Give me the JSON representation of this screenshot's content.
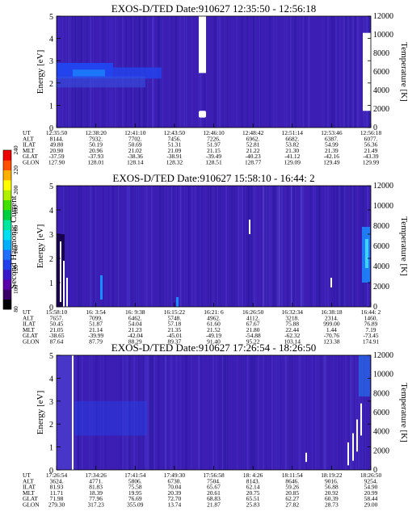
{
  "chart_data": [
    {
      "type": "heatmap",
      "title": "EXOS-D/TED   Date:910627  12:35:50 - 12:56:18",
      "ylabel": "Energy [eV]",
      "y2label": "Temperature [K]",
      "ylim": [
        0,
        5
      ],
      "y2lim": [
        0,
        12000
      ],
      "y_ticks": [
        "0",
        "1",
        "2",
        "3",
        "4",
        "5"
      ],
      "y2_ticks": [
        "0",
        "2000",
        "4000",
        "6000",
        "8000",
        "10000",
        "12000"
      ],
      "orbit_labels": [
        "UT",
        "ALT",
        "ILAT",
        "MLT",
        "GLAT",
        "GLON"
      ],
      "orbit_columns": [
        [
          "12:35:50",
          "8144.",
          "49.80",
          "20.90",
          "-37.59",
          "127.90"
        ],
        [
          "12:38:20",
          "7932.",
          "50.19",
          "20.96",
          "-37.93",
          "128.01"
        ],
        [
          "12:41:10",
          "7702.",
          "50.69",
          "21.02",
          "-38.36",
          "128.14"
        ],
        [
          "12:43:50",
          "7456.",
          "51.31",
          "21.09",
          "-38.91",
          "128.32"
        ],
        [
          "12:46:10",
          "7226.",
          "51.97",
          "21.15",
          "-39.49",
          "128.51"
        ],
        [
          "12:48:42",
          "6962.",
          "52.81",
          "21.22",
          "-40.23",
          "128.77"
        ],
        [
          "12:51:14",
          "6682.",
          "53.82",
          "21.30",
          "-41.12",
          "129.09"
        ],
        [
          "12:53:46",
          "6387.",
          "54.99",
          "21.39",
          "-42.16",
          "129.49"
        ],
        [
          "12:56:18",
          "6077.",
          "56.36",
          "21.49",
          "-43.39",
          "129.99"
        ]
      ]
    },
    {
      "type": "heatmap",
      "title": "EXOS-D/TED   Date:910627  15:58:10 - 16:44: 2",
      "ylabel": "Energy [eV]",
      "y2label": "Temperature [K]",
      "ylim": [
        0,
        5
      ],
      "y2lim": [
        0,
        12000
      ],
      "y_ticks": [
        "0",
        "1",
        "2",
        "3",
        "4",
        "5"
      ],
      "y2_ticks": [
        "0",
        "2000",
        "4000",
        "6000",
        "8000",
        "10000",
        "12000"
      ],
      "orbit_labels": [
        "UT",
        "ALT",
        "ILAT",
        "MLT",
        "GLAT",
        "GLON"
      ],
      "orbit_columns": [
        [
          "15:58:10",
          "7657.",
          "50.45",
          "21.05",
          "-38.65",
          "87.64"
        ],
        [
          "16: 3:54",
          "7099.",
          "51.87",
          "21.14",
          "-39.99",
          "87.79"
        ],
        [
          "16: 9:38",
          "6462.",
          "54.04",
          "21.23",
          "-42.04",
          "88.29"
        ],
        [
          "16:15:22",
          "5748.",
          "57.18",
          "21.35",
          "-45.01",
          "89.37"
        ],
        [
          "16:21: 6",
          "4962.",
          "61.60",
          "21.52",
          "-49.19",
          "91.40"
        ],
        [
          "16:26:50",
          "4112.",
          "67.67",
          "21.80",
          "-54.88",
          "95.22"
        ],
        [
          "16:32:34",
          "3218.",
          "75.88",
          "22.44",
          "-62.32",
          "103.14"
        ],
        [
          "16:38:18",
          "2314.",
          "999.00",
          "1.44",
          "-70.76",
          "123.38"
        ],
        [
          "16:44: 2",
          "1460.",
          "76.89",
          "7.19",
          "-73.45",
          "174.91"
        ]
      ]
    },
    {
      "type": "heatmap",
      "title": "EXOS-D/TED   Date:910627  17:26:54 - 18:26:50",
      "ylabel": "Energy [eV]",
      "y2label": "Temperature [K]",
      "ylim": [
        0,
        5
      ],
      "y2lim": [
        0,
        12000
      ],
      "y_ticks": [
        "0",
        "1",
        "2",
        "3",
        "4",
        "5"
      ],
      "y2_ticks": [
        "0",
        "2000",
        "4000",
        "6000",
        "8000",
        "10000",
        "12000"
      ],
      "orbit_labels": [
        "UT",
        "ALT",
        "ILAT",
        "MLT",
        "GLAT",
        "GLON"
      ],
      "orbit_columns": [
        [
          "17:26:54",
          "3624.",
          "81.93",
          "11.71",
          "71.98",
          "279.30"
        ],
        [
          "17:34:26",
          "4771.",
          "81.83",
          "18.39",
          "77.96",
          "317.23"
        ],
        [
          "17:41:54",
          "5806.",
          "75.58",
          "19.95",
          "76.69",
          "355.09"
        ],
        [
          "17:49:30",
          "6730.",
          "70.04",
          "20.39",
          "72.70",
          "13.74"
        ],
        [
          "17:56:58",
          "7504.",
          "65.67",
          "20.61",
          "68.83",
          "21.87"
        ],
        [
          "18: 4:26",
          "8143.",
          "62.14",
          "20.75",
          "65.51",
          "25.83"
        ],
        [
          "18:11:54",
          "8646.",
          "59.26",
          "20.85",
          "62.27",
          "27.82"
        ],
        [
          "18:19:22",
          "9016.",
          "56.88",
          "20.92",
          "60.39",
          "28.73"
        ],
        [
          "18:26:50",
          "9254.",
          "54.90",
          "20.99",
          "58.44",
          "29.00"
        ]
      ]
    }
  ],
  "colorbar": {
    "label": "Second Harmonic Current",
    "ticks": [
      "80",
      "100",
      "120",
      "140",
      "160",
      "180",
      "200",
      "220",
      "240"
    ],
    "colors": [
      "#000000",
      "#3a0066",
      "#5a00aa",
      "#3818c8",
      "#2040ee",
      "#2070ff",
      "#00b0ff",
      "#00e0f0",
      "#00e8a0",
      "#00d040",
      "#40e000",
      "#b0f000",
      "#ffff00",
      "#ffb000",
      "#ff5000",
      "#ee0000"
    ]
  },
  "colors": {
    "background": "#3c1eb4",
    "mid": "#2244ee",
    "high": "#1a8cff"
  }
}
